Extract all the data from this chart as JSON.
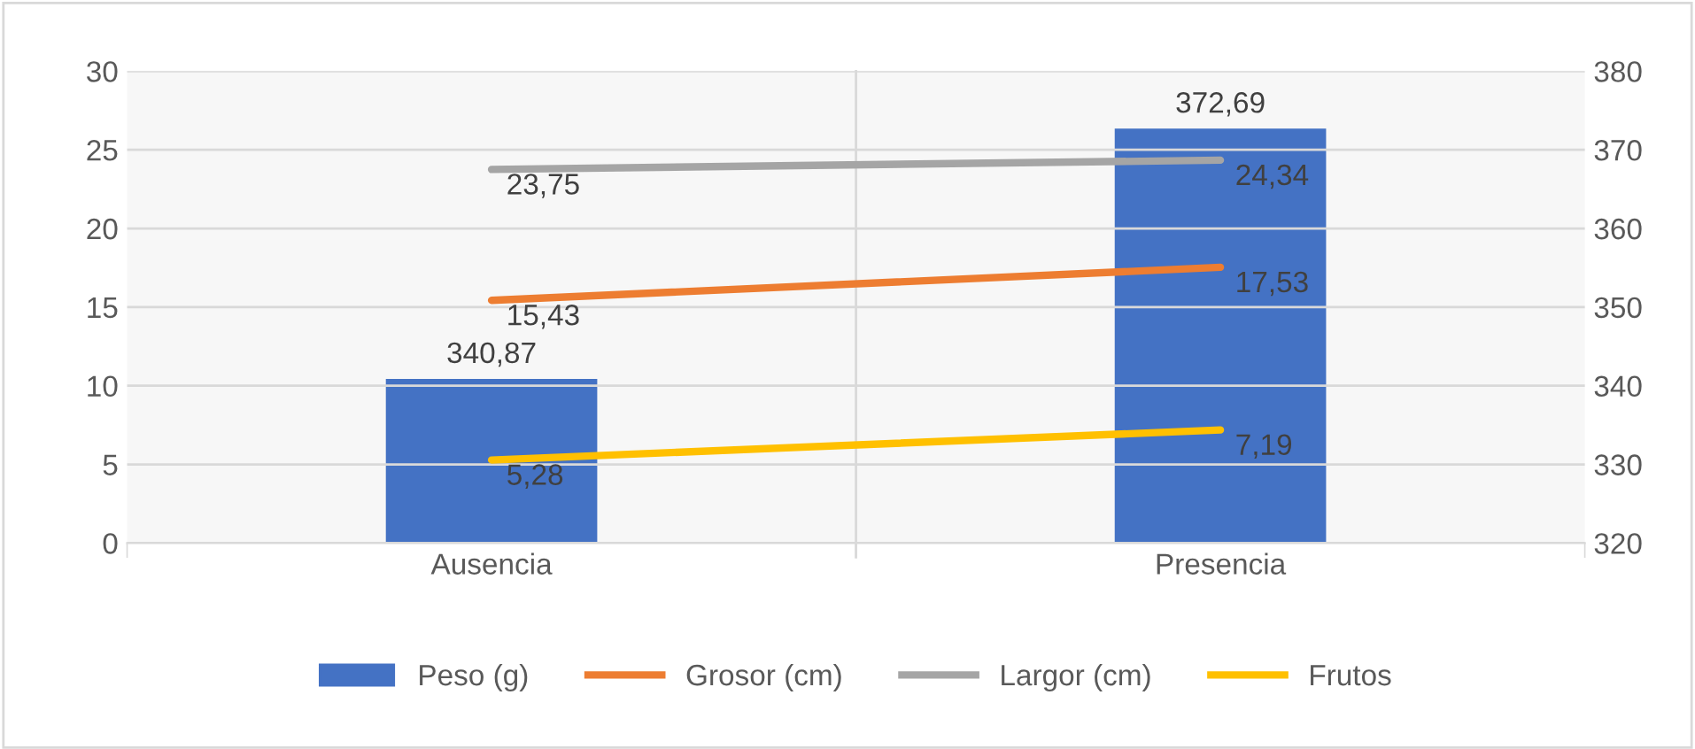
{
  "chart_data": {
    "type": "bar",
    "categories": [
      "Ausencia",
      "Presencia"
    ],
    "series": [
      {
        "name": "Peso (g)",
        "axis": "y2",
        "color": "#4472c4",
        "values": [
          340.87,
          372.69
        ],
        "value_labels": [
          "340,87",
          "372,69"
        ]
      },
      {
        "name": "Grosor (cm)",
        "type": "line",
        "color": "#ed7d31",
        "values": [
          15.43,
          17.53
        ],
        "value_labels": [
          "15,43",
          "17,53"
        ]
      },
      {
        "name": "Largor (cm)",
        "type": "line",
        "color": "#a5a5a5",
        "values": [
          23.75,
          24.34
        ],
        "value_labels": [
          "23,75",
          "24,34"
        ]
      },
      {
        "name": "Frutos",
        "type": "line",
        "color": "#ffc000",
        "values": [
          5.28,
          7.19
        ],
        "value_labels": [
          "5,28",
          "7,19"
        ]
      }
    ],
    "ylim": [
      0,
      30
    ],
    "yticks": [
      0,
      5,
      10,
      15,
      20,
      25,
      30
    ],
    "y2lim": [
      320,
      380
    ],
    "y2ticks": [
      320,
      330,
      340,
      350,
      360,
      370,
      380
    ],
    "grid": "y",
    "legend": "bottom",
    "marker": "none",
    "line_style": "solid"
  }
}
